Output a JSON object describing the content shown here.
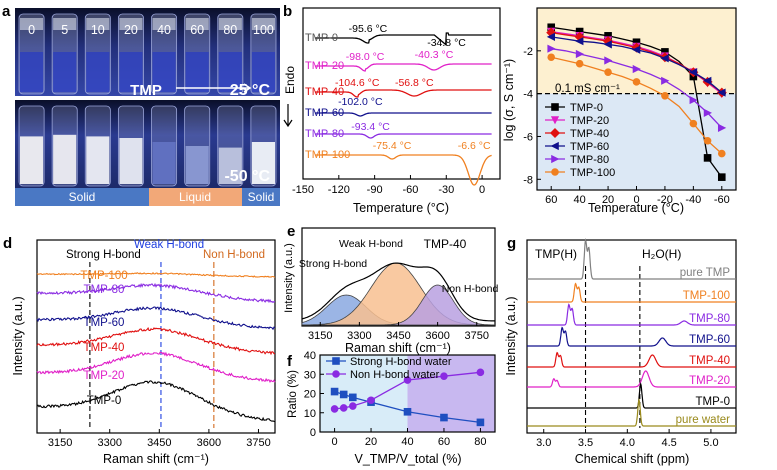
{
  "figure": {
    "panel_labels": [
      "a",
      "b",
      "c",
      "d",
      "e",
      "f",
      "g"
    ]
  },
  "panel_a": {
    "vial_labels": [
      "0",
      "5",
      "10",
      "20",
      "40",
      "60",
      "80",
      "100"
    ],
    "tmp_label": "TMP",
    "temp_top": "25 °C",
    "temp_bottom": "-50 °C",
    "states": [
      "Solid",
      "Liquid",
      "Solid"
    ],
    "colors": {
      "solid_bar": "#4a78c4",
      "liquid_bar": "#f2a878",
      "blue_liquid": "#2233aa"
    }
  },
  "panel_b": {
    "ylabel": "Endo",
    "xlabel": "Temperature (°C)",
    "xticks": [
      "-150",
      "-120",
      "-90",
      "-60",
      "-30",
      "0"
    ],
    "curves": [
      {
        "name": "TMP-0",
        "color": "#000000",
        "peaks": [
          "-95.6 °C",
          "-34.8 °C"
        ]
      },
      {
        "name": "TMP-20",
        "color": "#e020c8",
        "peaks": [
          "-98.0 °C",
          "-40.3 °C"
        ]
      },
      {
        "name": "TMP-40",
        "color": "#e01010",
        "peaks": [
          "-104.6 °C",
          "-56.8 °C"
        ]
      },
      {
        "name": "TMP-60",
        "color": "#10108c",
        "peaks": [
          "-102.0 °C"
        ]
      },
      {
        "name": "TMP-80",
        "color": "#8a2be2",
        "peaks": [
          "-93.4 °C"
        ]
      },
      {
        "name": "TMP-100",
        "color": "#f08020",
        "peaks": [
          "-75.4 °C",
          "-6.6 °C"
        ]
      }
    ]
  },
  "panel_c": {
    "ylabel": "log (σ, S cm⁻¹)",
    "xlabel": "Temperature (°C)",
    "threshold_label": "0.1 mS cm⁻¹",
    "threshold_value": -4,
    "xticks": [
      "60",
      "40",
      "20",
      "0",
      "-20",
      "-40",
      "-60"
    ],
    "yticks": [
      "-2",
      "-4",
      "-6",
      "-8"
    ],
    "colors": {
      "above_bg": "#fdf0d0",
      "below_bg": "#dce8f5"
    },
    "chart_data": {
      "type": "line",
      "x": [
        60,
        50,
        40,
        30,
        20,
        10,
        0,
        -10,
        -20,
        -30,
        -40,
        -50,
        -60
      ],
      "xlim": [
        70,
        -70
      ],
      "ylim": [
        -8.5,
        0
      ],
      "series": [
        {
          "name": "TMP-0",
          "color": "#000000",
          "marker": "square",
          "values": [
            -0.9,
            -1.0,
            -1.1,
            -1.2,
            -1.3,
            -1.45,
            -1.6,
            -1.8,
            -2.05,
            -2.5,
            -3.2,
            -7.0,
            -7.9
          ]
        },
        {
          "name": "TMP-20",
          "color": "#e020c8",
          "marker": "triangle-down",
          "values": [
            -1.1,
            -1.2,
            -1.3,
            -1.4,
            -1.5,
            -1.65,
            -1.8,
            -2.0,
            -2.25,
            -2.6,
            -3.0,
            -3.5,
            -4.0
          ]
        },
        {
          "name": "TMP-40",
          "color": "#e01010",
          "marker": "diamond",
          "values": [
            -1.15,
            -1.25,
            -1.35,
            -1.45,
            -1.55,
            -1.7,
            -1.85,
            -2.05,
            -2.3,
            -2.6,
            -3.0,
            -3.45,
            -3.95
          ]
        },
        {
          "name": "TMP-60",
          "color": "#10108c",
          "marker": "triangle-left",
          "values": [
            -1.35,
            -1.45,
            -1.55,
            -1.6,
            -1.7,
            -1.8,
            -1.95,
            -2.1,
            -2.35,
            -2.65,
            -3.0,
            -3.4,
            -3.95
          ]
        },
        {
          "name": "TMP-80",
          "color": "#8a2be2",
          "marker": "triangle-right",
          "values": [
            -1.9,
            -2.0,
            -2.15,
            -2.3,
            -2.45,
            -2.65,
            -2.85,
            -3.1,
            -3.4,
            -3.8,
            -4.3,
            -4.9,
            -5.6
          ]
        },
        {
          "name": "TMP-100",
          "color": "#f08020",
          "marker": "circle",
          "values": [
            -2.3,
            -2.45,
            -2.6,
            -2.8,
            -3.0,
            -3.2,
            -3.45,
            -3.75,
            -4.1,
            -4.6,
            -5.4,
            -6.2,
            -6.8
          ]
        }
      ]
    }
  },
  "panel_d": {
    "ylabel": "Intensity (a.u.)",
    "xlabel": "Raman shift (cm⁻¹)",
    "xticks": [
      "3150",
      "3300",
      "3450",
      "3600",
      "3750"
    ],
    "region_labels": [
      "Strong H-bond",
      "Weak H-bond",
      "Non H-bond"
    ],
    "region_positions": [
      3240,
      3455,
      3615
    ],
    "colors": {
      "strong": "#000000",
      "weak": "#1f3fe0",
      "non": "#d2691e"
    },
    "chart_data": {
      "type": "line",
      "xlim": [
        3080,
        3800
      ],
      "series": [
        {
          "name": "TMP-100",
          "color": "#f08020"
        },
        {
          "name": "TMP-80",
          "color": "#8a2be2"
        },
        {
          "name": "TMP-60",
          "color": "#10108c"
        },
        {
          "name": "TMP-40",
          "color": "#e01010"
        },
        {
          "name": "TMP-20",
          "color": "#e020c8"
        },
        {
          "name": "TMP-0",
          "color": "#000000"
        }
      ]
    }
  },
  "panel_e": {
    "title": "TMP-40",
    "ylabel": "Intensity (a.u.)",
    "xlabel": "Raman shift (cm⁻¹)",
    "xticks": [
      "3150",
      "3300",
      "3450",
      "3600",
      "3750"
    ],
    "component_labels": [
      "Strong H-bond",
      "Weak H-bond",
      "Non H-bond"
    ],
    "colors": {
      "strong": "#8aa8e0",
      "weak": "#f8c090",
      "non": "#b8a0e0"
    }
  },
  "panel_f": {
    "ylabel": "Ratio (%)",
    "xlabel": "V_TMP/V_total (%)",
    "xticks": [
      "0",
      "20",
      "40",
      "60",
      "80"
    ],
    "yticks": [
      "0",
      "10",
      "20",
      "30",
      "40"
    ],
    "colors": {
      "left_bg": "#d8ecf8",
      "right_bg": "#c8b8f0"
    },
    "chart_data": {
      "type": "line",
      "x": [
        0,
        5,
        10,
        20,
        40,
        60,
        80
      ],
      "xlim": [
        -8,
        88
      ],
      "ylim": [
        0,
        40
      ],
      "series": [
        {
          "name": "Strong H-bond water",
          "color": "#1f4fc0",
          "marker": "square",
          "values": [
            21,
            19.5,
            18,
            15.5,
            10.5,
            7.5,
            5
          ]
        },
        {
          "name": "Non H-bond water",
          "color": "#8a2be2",
          "marker": "circle",
          "values": [
            12,
            12.5,
            13.5,
            16.5,
            27,
            29,
            31
          ]
        }
      ]
    }
  },
  "panel_g": {
    "ylabel": "Intensity (a.u.)",
    "xlabel": "Chemical shift (ppm)",
    "xticks": [
      "3.0",
      "3.5",
      "4.0",
      "4.5",
      "5.0"
    ],
    "peak_labels": [
      "TMP(H)",
      "H₂O(H)"
    ],
    "reference_positions": [
      3.5,
      4.15
    ],
    "chart_data": {
      "type": "line",
      "xlim": [
        2.8,
        5.3
      ],
      "series": [
        {
          "name": "pure TMP",
          "color": "#808080",
          "peaks": [
            3.5
          ],
          "heights": [
            38
          ]
        },
        {
          "name": "TMP-100",
          "color": "#f08020",
          "peaks": [
            3.38
          ],
          "heights": [
            18
          ]
        },
        {
          "name": "TMP-80",
          "color": "#8a2be2",
          "peaks": [
            3.3,
            4.68
          ],
          "heights": [
            20,
            4
          ]
        },
        {
          "name": "TMP-60",
          "color": "#10108c",
          "peaks": [
            3.22,
            4.42
          ],
          "heights": [
            18,
            8
          ]
        },
        {
          "name": "TMP-40",
          "color": "#e01010",
          "peaks": [
            3.16,
            4.3
          ],
          "heights": [
            14,
            12
          ]
        },
        {
          "name": "TMP-20",
          "color": "#e020c8",
          "peaks": [
            3.12,
            4.22
          ],
          "heights": [
            8,
            16
          ]
        },
        {
          "name": "TMP-0",
          "color": "#000000",
          "peaks": [
            4.16
          ],
          "heights": [
            24
          ]
        },
        {
          "name": "pure water",
          "color": "#9a8a1c",
          "peaks": [
            4.14
          ],
          "heights": [
            26
          ]
        }
      ]
    }
  }
}
